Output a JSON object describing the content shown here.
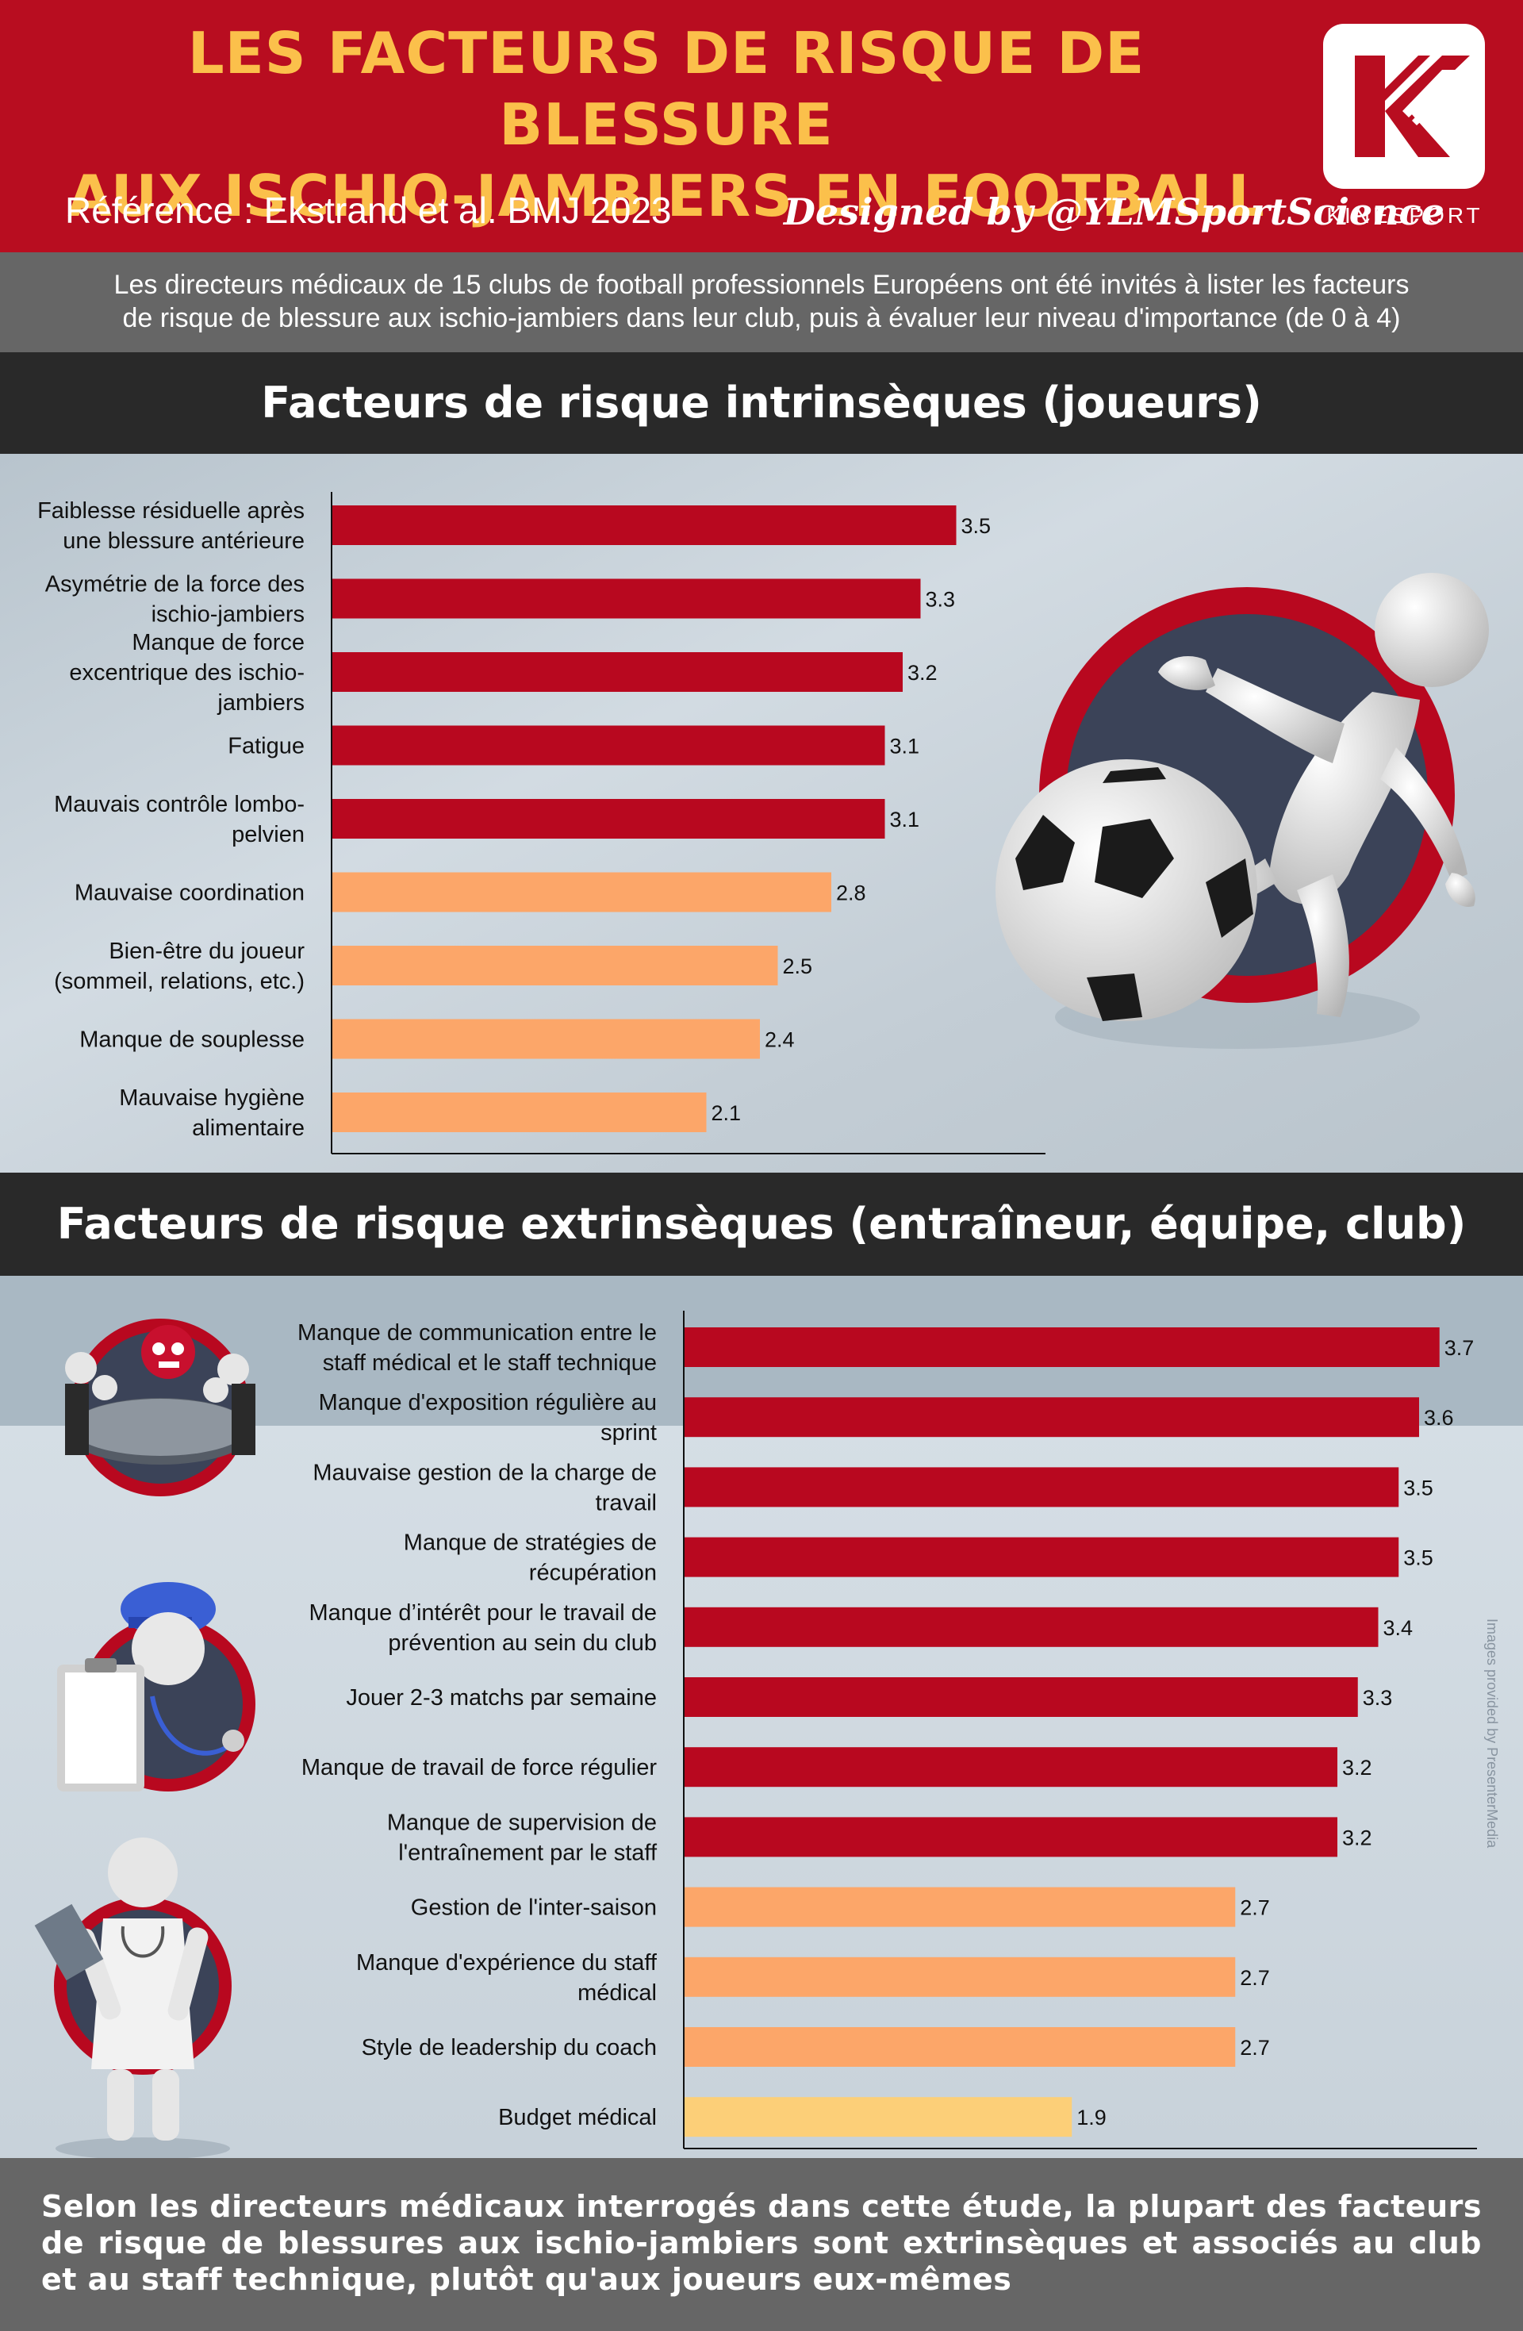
{
  "header": {
    "title_line1": "LES FACTEURS DE RISQUE DE BLESSURE",
    "title_line2": "AUX ISCHIO-JAMBIERS EN FOOTBALL",
    "reference": "Référence : Ekstrand et al. BMJ 2023",
    "designed_by": "Designed by @YLMSportScience",
    "logo_text": "KINESPORT",
    "logo_icon": "kinesport-k-logo",
    "brand_color": "#b80d20",
    "title_color": "#fbc04b"
  },
  "intro": {
    "line1": "Les directeurs médicaux de 15 clubs de football professionnels Européens ont été invités à lister les facteurs",
    "line2": "de risque de blessure aux ischio-jambiers dans leur club, puis à évaluer leur niveau d'importance (de 0 à 4)"
  },
  "image_credit": "Images provided by PresenterMedia",
  "footer": {
    "text": "Selon les directeurs médicaux interrogés dans cette étude, la plupart des facteurs de risque de blessures aux ischio-jambiers sont extrinsèques et associés au club et au staff technique, plutôt qu'aux joueurs eux-mêmes"
  },
  "chart_data": [
    {
      "type": "bar",
      "orientation": "horizontal",
      "title": "Facteurs de risque intrinsèques (joueurs)",
      "xlim": [
        0,
        4
      ],
      "grid": false,
      "legend": "none",
      "data_labels": true,
      "categories": [
        [
          "Faiblesse résiduelle après",
          "une blessure antérieure"
        ],
        [
          "Asymétrie de la force des",
          "ischio-jambiers"
        ],
        [
          "Manque de force",
          "excentrique des ischio-",
          "jambiers"
        ],
        [
          "Fatigue"
        ],
        [
          "Mauvais contrôle lombo-",
          "pelvien"
        ],
        [
          "Mauvaise coordination"
        ],
        [
          "Bien-être du joueur",
          "(sommeil, relations, etc.)"
        ],
        [
          "Manque de souplesse"
        ],
        [
          "Mauvaise hygiène",
          "alimentaire"
        ]
      ],
      "values": [
        3.5,
        3.3,
        3.2,
        3.1,
        3.1,
        2.8,
        2.5,
        2.4,
        2.1
      ],
      "colors": [
        "#b8081f",
        "#b8081f",
        "#b8081f",
        "#b8081f",
        "#b8081f",
        "#fca669",
        "#fca669",
        "#fca669",
        "#fca669"
      ]
    },
    {
      "type": "bar",
      "orientation": "horizontal",
      "title": "Facteurs de risque extrinsèques (entraîneur, équipe, club)",
      "xlim": [
        0,
        4
      ],
      "grid": false,
      "legend": "none",
      "data_labels": true,
      "categories": [
        [
          "Manque de communication entre le",
          "staff médical et le staff technique"
        ],
        [
          "Manque d'exposition régulière au",
          "sprint"
        ],
        [
          "Mauvaise gestion de la charge de",
          "travail"
        ],
        [
          "Manque de stratégies de",
          "récupération"
        ],
        [
          "Manque d’intérêt pour le travail de",
          "prévention au sein du club"
        ],
        [
          "Jouer 2-3 matchs par semaine"
        ],
        [
          "Manque de travail de force régulier"
        ],
        [
          "Manque de supervision de",
          "l'entraînement par le staff"
        ],
        [
          "Gestion de l'inter-saison"
        ],
        [
          "Manque d'expérience du staff",
          "médical"
        ],
        [
          "Style de leadership du coach"
        ],
        [
          "Budget médical"
        ]
      ],
      "values": [
        3.7,
        3.6,
        3.5,
        3.5,
        3.4,
        3.3,
        3.2,
        3.2,
        2.7,
        2.7,
        2.7,
        1.9
      ],
      "colors": [
        "#b8081f",
        "#b8081f",
        "#b8081f",
        "#b8081f",
        "#b8081f",
        "#b8081f",
        "#b8081f",
        "#b8081f",
        "#fca669",
        "#fca669",
        "#fca669",
        "#fccf78"
      ]
    }
  ]
}
